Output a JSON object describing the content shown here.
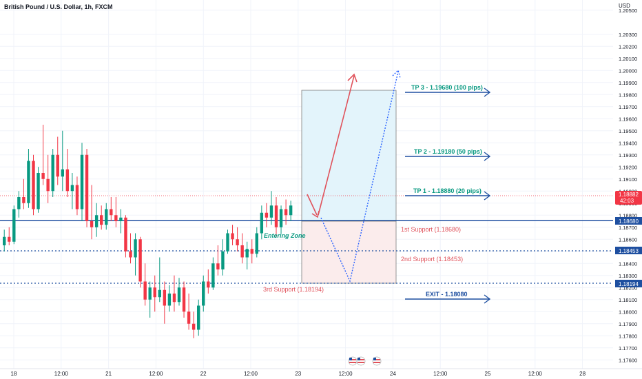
{
  "header": {
    "symbol_title": "British Pound / U.S. Dollar, 1h, FXCM"
  },
  "colors": {
    "up": "#089981",
    "down": "#f23645",
    "level_line": "#1e4fa0",
    "profit_zone": "#e3f4fb",
    "loss_zone": "#fbecec",
    "tp_text": "#089981",
    "support_text": "#e0525b",
    "arrow_blue": "#2962ff",
    "arrow_red": "#e0525b"
  },
  "chart_data": {
    "type": "candlestick",
    "currency": "USD",
    "x_ticks": [
      "18",
      "12:00",
      "21",
      "12:00",
      "22",
      "12:00",
      "23",
      "12:00",
      "24",
      "12:00",
      "25",
      "12:00",
      "28"
    ],
    "y_ticks": [
      "1.20500",
      "1.20300",
      "1.20200",
      "1.20100",
      "1.20000",
      "1.19900",
      "1.19800",
      "1.19700",
      "1.19600",
      "1.19500",
      "1.19400",
      "1.19300",
      "1.19200",
      "1.19100",
      "1.19000",
      "1.18900",
      "1.18800",
      "1.18700",
      "1.18600",
      "1.18500",
      "1.18400",
      "1.18300",
      "1.18200",
      "1.18100",
      "1.18000",
      "1.17900",
      "1.17800",
      "1.17700",
      "1.17600"
    ],
    "ylim": [
      1.1755,
      1.2055
    ],
    "current_price": {
      "value": "1.18882",
      "countdown": "42:03"
    },
    "level_badges": [
      {
        "value": "1.18680",
        "style": "solid"
      },
      {
        "value": "1.18453",
        "style": "dotted"
      },
      {
        "value": "1.18194",
        "style": "dotted"
      }
    ],
    "candles": [
      [
        1.1855,
        1.1868,
        1.185,
        1.1862
      ],
      [
        1.1862,
        1.187,
        1.1855,
        1.1858
      ],
      [
        1.1858,
        1.1888,
        1.1856,
        1.1885
      ],
      [
        1.1885,
        1.19,
        1.1878,
        1.1895
      ],
      [
        1.1895,
        1.191,
        1.1885,
        1.189
      ],
      [
        1.189,
        1.1935,
        1.1886,
        1.1925
      ],
      [
        1.1925,
        1.193,
        1.188,
        1.1885
      ],
      [
        1.1885,
        1.192,
        1.1882,
        1.1915
      ],
      [
        1.1915,
        1.1955,
        1.1905,
        1.191
      ],
      [
        1.191,
        1.193,
        1.189,
        1.19
      ],
      [
        1.19,
        1.1935,
        1.1895,
        1.193
      ],
      [
        1.193,
        1.1945,
        1.1905,
        1.1912
      ],
      [
        1.1912,
        1.195,
        1.19,
        1.1918
      ],
      [
        1.1918,
        1.1935,
        1.1895,
        1.19
      ],
      [
        1.19,
        1.1915,
        1.1885,
        1.1905
      ],
      [
        1.1905,
        1.1912,
        1.188,
        1.1885
      ],
      [
        1.1885,
        1.194,
        1.1875,
        1.193
      ],
      [
        1.193,
        1.1935,
        1.187,
        1.1875
      ],
      [
        1.1875,
        1.1905,
        1.186,
        1.187
      ],
      [
        1.187,
        1.189,
        1.1862,
        1.188
      ],
      [
        1.188,
        1.1888,
        1.1868,
        1.1872
      ],
      [
        1.1872,
        1.189,
        1.1868,
        1.1885
      ],
      [
        1.1885,
        1.1895,
        1.1875,
        1.188
      ],
      [
        1.188,
        1.1895,
        1.187,
        1.1875
      ],
      [
        1.1875,
        1.1885,
        1.1865,
        1.1878
      ],
      [
        1.1878,
        1.188,
        1.1845,
        1.185
      ],
      [
        1.185,
        1.1865,
        1.184,
        1.1845
      ],
      [
        1.1845,
        1.1865,
        1.183,
        1.186
      ],
      [
        1.186,
        1.1862,
        1.182,
        1.1825
      ],
      [
        1.1825,
        1.184,
        1.1805,
        1.181
      ],
      [
        1.181,
        1.1825,
        1.1795,
        1.182
      ],
      [
        1.182,
        1.183,
        1.18,
        1.1812
      ],
      [
        1.1812,
        1.1845,
        1.1808,
        1.1818
      ],
      [
        1.1818,
        1.1825,
        1.179,
        1.1805
      ],
      [
        1.1805,
        1.1822,
        1.18,
        1.1815
      ],
      [
        1.1815,
        1.183,
        1.18,
        1.1808
      ],
      [
        1.1808,
        1.1828,
        1.1805,
        1.182
      ],
      [
        1.182,
        1.1825,
        1.1795,
        1.18
      ],
      [
        1.18,
        1.1815,
        1.1785,
        1.179
      ],
      [
        1.179,
        1.18,
        1.1778,
        1.1785
      ],
      [
        1.1785,
        1.181,
        1.178,
        1.1805
      ],
      [
        1.1805,
        1.183,
        1.18,
        1.1825
      ],
      [
        1.1825,
        1.1835,
        1.1815,
        1.182
      ],
      [
        1.182,
        1.1845,
        1.1818,
        1.184
      ],
      [
        1.184,
        1.1855,
        1.183,
        1.1835
      ],
      [
        1.1835,
        1.186,
        1.183,
        1.185
      ],
      [
        1.185,
        1.1868,
        1.1848,
        1.1865
      ],
      [
        1.1865,
        1.1872,
        1.1855,
        1.186
      ],
      [
        1.186,
        1.187,
        1.185,
        1.1855
      ],
      [
        1.1855,
        1.1865,
        1.184,
        1.1845
      ],
      [
        1.1845,
        1.1858,
        1.1835,
        1.1852
      ],
      [
        1.1852,
        1.186,
        1.184,
        1.1848
      ],
      [
        1.1848,
        1.187,
        1.1845,
        1.1865
      ],
      [
        1.1865,
        1.1888,
        1.186,
        1.1882
      ],
      [
        1.1882,
        1.189,
        1.187,
        1.1878
      ],
      [
        1.1878,
        1.19,
        1.1872,
        1.1888
      ],
      [
        1.1888,
        1.1895,
        1.1862,
        1.187
      ],
      [
        1.187,
        1.1888,
        1.1865,
        1.1885
      ],
      [
        1.1885,
        1.1893,
        1.1872,
        1.188
      ],
      [
        1.188,
        1.1892,
        1.1875,
        1.1888
      ]
    ]
  },
  "annotations": {
    "entering_zone": "Entering Zone",
    "tp1": "TP 1 - 1.18880 (20 pips)",
    "tp2": "TP 2 - 1.19180 (50 pips)",
    "tp3": "TP 3 - 1.19680 (100 pips)",
    "support1": "1st Support (1.18680)",
    "support2": "2nd Support (1.18453)",
    "support3": "3rd Support (1.18194)",
    "exit": "EXIT - 1.18080"
  }
}
